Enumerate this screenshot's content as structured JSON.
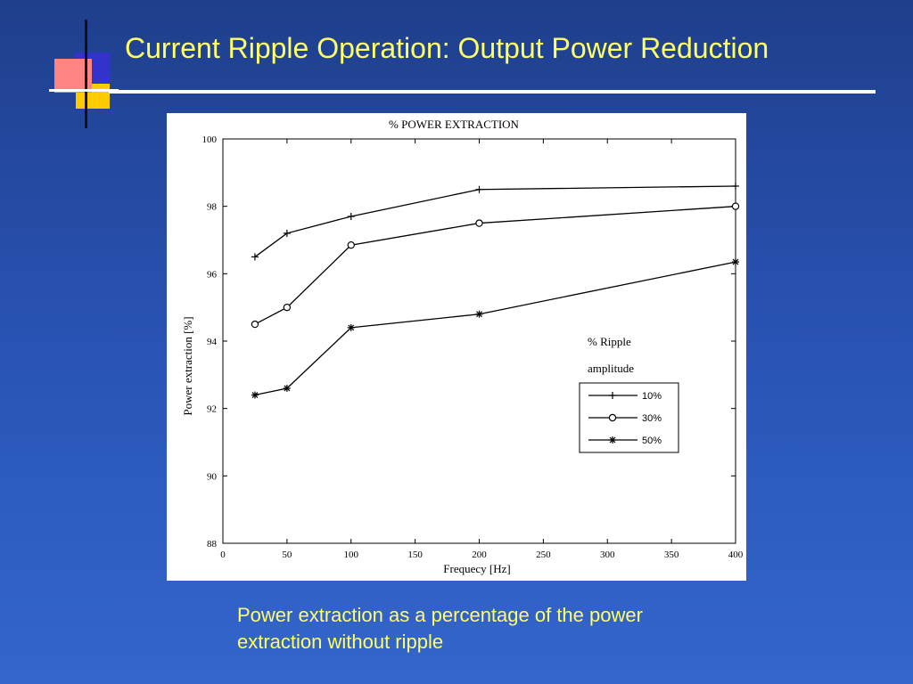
{
  "slide": {
    "title": "Current Ripple Operation: Output Power Reduction",
    "caption": "Power extraction as a percentage of the power extraction without ripple"
  },
  "colors": {
    "background_top": "#1f3f8c",
    "background_bottom": "#3466cc",
    "title_text": "#ffff66",
    "caption_text": "#ffff66",
    "logo_red": "#ff3333",
    "logo_blue": "#3333cc",
    "logo_yellow": "#ffcc00"
  },
  "chart_data": {
    "type": "line",
    "title": "% POWER EXTRACTION",
    "xlabel": "Frequecy [Hz]",
    "ylabel": "Power extraction [%]",
    "xlim": [
      0,
      400
    ],
    "ylim": [
      88,
      100
    ],
    "xticks": [
      0,
      50,
      100,
      150,
      200,
      250,
      300,
      350,
      400
    ],
    "yticks": [
      88,
      90,
      92,
      94,
      96,
      98,
      100
    ],
    "grid": false,
    "legend_title": [
      "% Ripple",
      "amplitude"
    ],
    "legend_position": "lower-right",
    "x": [
      25,
      50,
      100,
      200,
      400
    ],
    "series": [
      {
        "name": "10%",
        "marker": "plus",
        "values": [
          96.5,
          97.2,
          97.7,
          98.5,
          98.6
        ]
      },
      {
        "name": "30%",
        "marker": "circle",
        "values": [
          94.5,
          95.0,
          96.85,
          97.5,
          98.0
        ]
      },
      {
        "name": "50%",
        "marker": "star",
        "values": [
          92.4,
          92.6,
          94.4,
          94.8,
          96.35
        ]
      }
    ]
  }
}
